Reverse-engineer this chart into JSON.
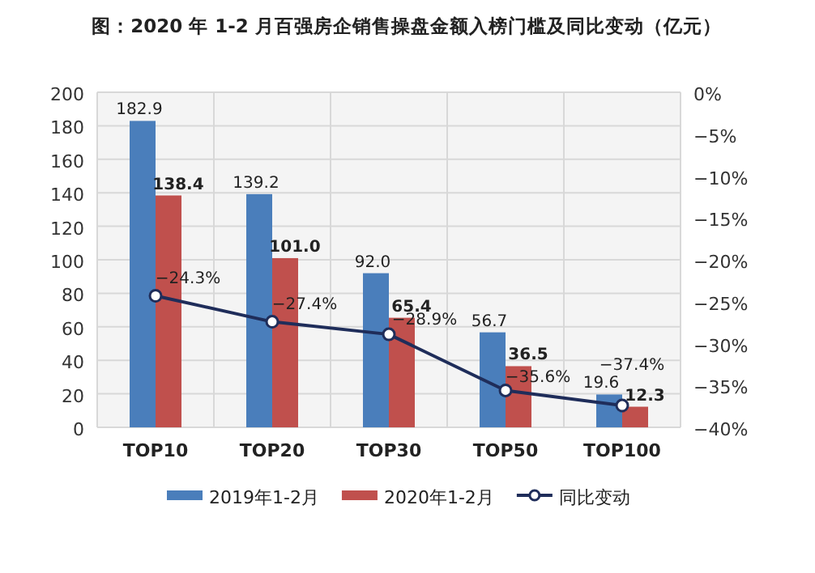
{
  "chart_data": {
    "type": "bar",
    "title": "图：2020 年 1-2 月百强房企销售操盘金额入榜门槛及同比变动（亿元）",
    "categories": [
      "TOP10",
      "TOP20",
      "TOP30",
      "TOP50",
      "TOP100"
    ],
    "series": [
      {
        "name": "2019年1-2月",
        "color": "#4a7ebb",
        "values": [
          182.9,
          139.2,
          92.0,
          56.7,
          19.6
        ],
        "value_labels": [
          "182.9",
          "139.2",
          "92.0",
          "56.7",
          "19.6"
        ]
      },
      {
        "name": "2020年1-2月",
        "color": "#c0504d",
        "values": [
          138.4,
          101.0,
          65.4,
          36.5,
          12.3
        ],
        "value_labels": [
          "138.4",
          "101.0",
          "65.4",
          "36.5",
          "12.3"
        ]
      },
      {
        "name": "同比变动",
        "type": "line",
        "axis": "y2",
        "color": "#1f2d5a",
        "marker": "circle",
        "values": [
          -24.3,
          -27.4,
          -28.9,
          -35.6,
          -37.4
        ],
        "value_labels": [
          "−24.3%",
          "−27.4%",
          "−28.9%",
          "−35.6%",
          "−37.4%"
        ]
      }
    ],
    "ylim": [
      0,
      200
    ],
    "yticks": [
      0,
      20,
      40,
      60,
      80,
      100,
      120,
      140,
      160,
      180,
      200
    ],
    "y2lim": [
      -40,
      0
    ],
    "y2ticks": [
      {
        "value": 0,
        "label": "0%"
      },
      {
        "value": -5,
        "label": "−5%"
      },
      {
        "value": -10,
        "label": "−10%"
      },
      {
        "value": -15,
        "label": "−15%"
      },
      {
        "value": -20,
        "label": "−20%"
      },
      {
        "value": -25,
        "label": "−25%"
      },
      {
        "value": -30,
        "label": "−30%"
      },
      {
        "value": -35,
        "label": "−35%"
      },
      {
        "value": -40,
        "label": "−40%"
      }
    ],
    "data_labels": true,
    "grid": true,
    "legend": "bottom"
  }
}
